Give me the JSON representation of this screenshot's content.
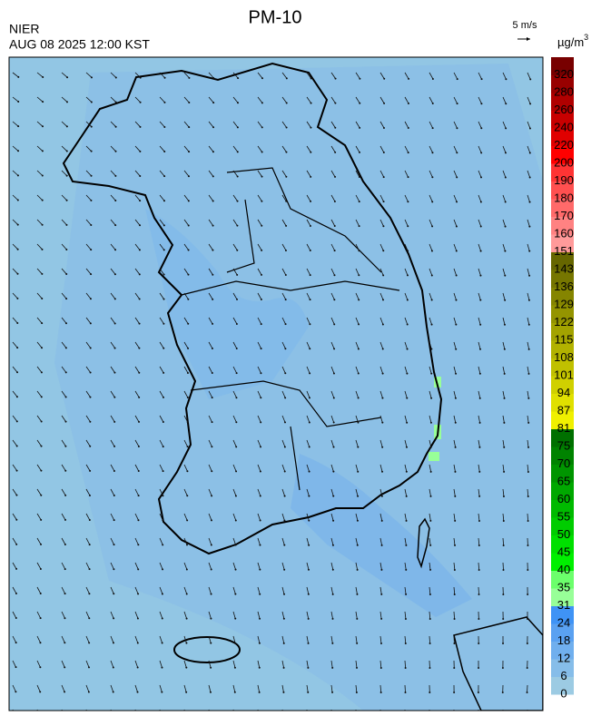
{
  "header": {
    "title": "PM-10",
    "agency": "NIER",
    "datetime": "AUG 08 2025 12:00 KST"
  },
  "wind_scale": {
    "label": "5 m/s"
  },
  "colorbar": {
    "unit": "µg/m",
    "unit_superscript": "3",
    "ticks": [
      0,
      6,
      12,
      18,
      24,
      31,
      35,
      40,
      45,
      50,
      55,
      60,
      65,
      70,
      75,
      81,
      87,
      94,
      101,
      108,
      115,
      122,
      129,
      136,
      143,
      151,
      160,
      170,
      180,
      190,
      200,
      220,
      240,
      260,
      280,
      320
    ],
    "colors": [
      "#9ccbe3",
      "#86bde9",
      "#70afee",
      "#5aa1f1",
      "#3f93f5",
      "#98ff98",
      "#6cff6c",
      "#00f000",
      "#00e000",
      "#00cd00",
      "#00ba00",
      "#00a800",
      "#009500",
      "#008300",
      "#007000",
      "#f0f000",
      "#e0e000",
      "#d0d000",
      "#c0c000",
      "#b2b200",
      "#a3a300",
      "#949400",
      "#858500",
      "#767600",
      "#666600",
      "#ff9a9a",
      "#ff8282",
      "#ff6a6a",
      "#ff5050",
      "#ff3434",
      "#ff0000",
      "#e00000",
      "#c80000",
      "#b00000",
      "#980000",
      "#780000"
    ]
  }
}
